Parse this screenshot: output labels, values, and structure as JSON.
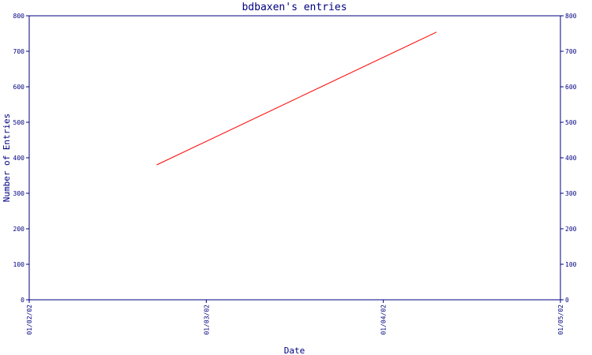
{
  "chart_data": {
    "type": "line",
    "title": "bdbaxen's entries",
    "xlabel": "Date",
    "ylabel": "Number of Entries",
    "x_ticks": [
      "01/02/02",
      "01/03/02",
      "01/04/02",
      "01/05/02"
    ],
    "y_ticks": [
      0,
      100,
      200,
      300,
      400,
      500,
      600,
      700,
      800
    ],
    "ylim": [
      0,
      800
    ],
    "xlim": [
      "01/02/02",
      "01/05/02"
    ],
    "right_axis_ticks": true,
    "grid": false,
    "series": [
      {
        "color": "#ff0000",
        "points": [
          {
            "x": "01/02/02+0.72",
            "y": 380
          },
          {
            "x": "01/04/02+0.30",
            "y": 754
          }
        ]
      }
    ],
    "colors": {
      "axis": "#000080",
      "text": "#000080",
      "background": "#ffffff"
    }
  }
}
